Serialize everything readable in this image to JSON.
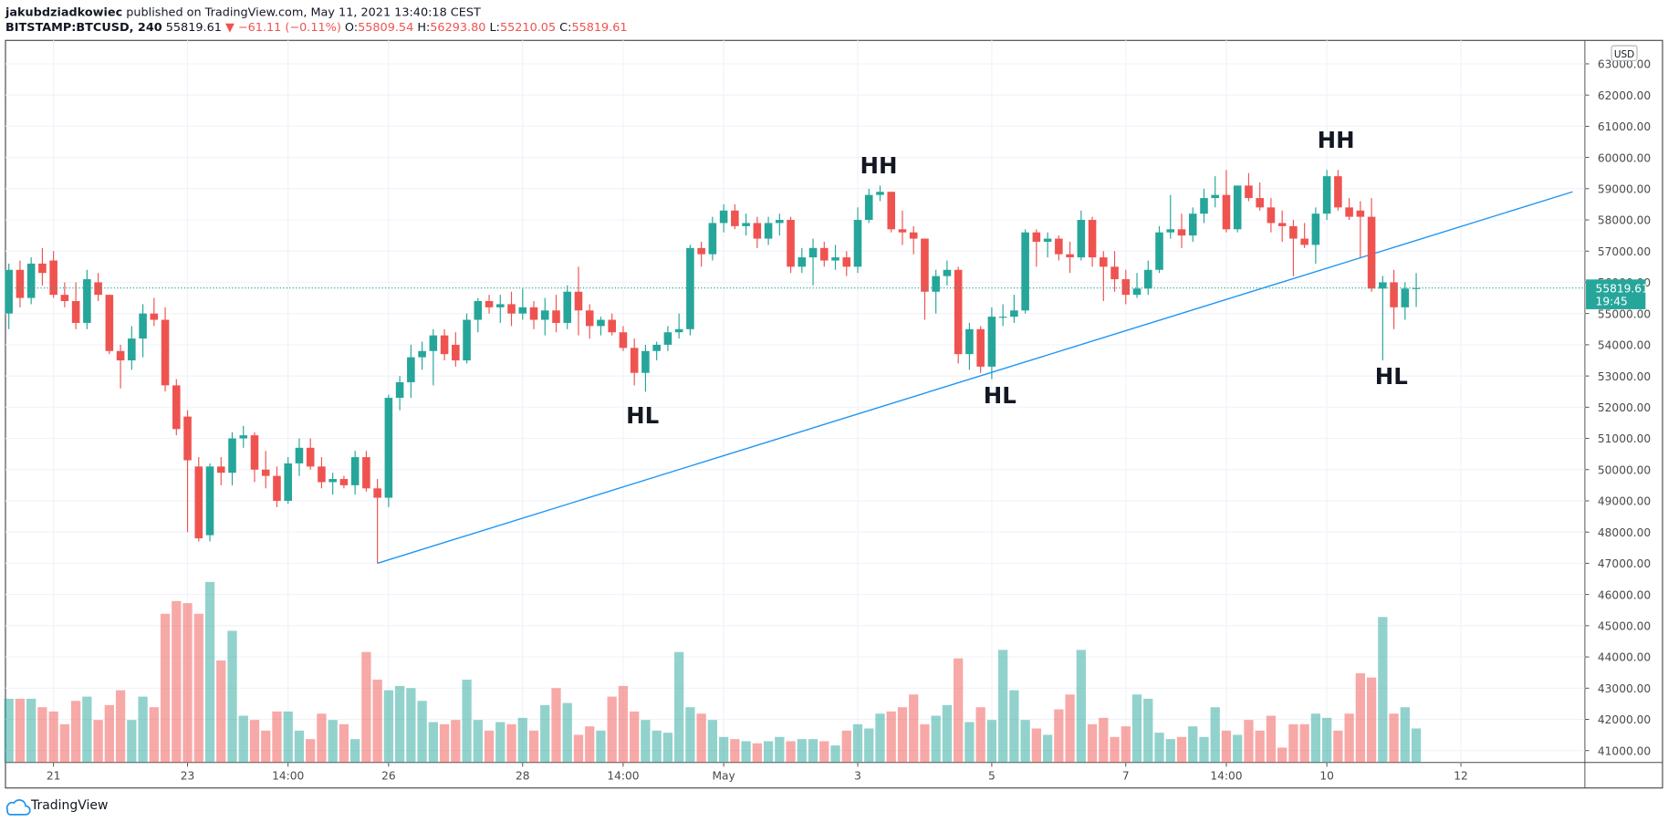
{
  "chart_data": {
    "type": "candlestick",
    "author": "jakubdziadkowiec",
    "published": "published on TradingView.com, May 11, 2021 13:40:18 CEST",
    "symbol": "BITSTAMP:BTCUSD, 240",
    "last": "55819.61",
    "change": "▼ −61.11 (−0.11%)",
    "ohlc_legend": [
      {
        "label": "O:",
        "value": "55809.54"
      },
      {
        "label": "H:",
        "value": "56293.80"
      },
      {
        "label": "L:",
        "value": "55210.05"
      },
      {
        "label": "C:",
        "value": "55819.61"
      }
    ],
    "currency": "USD",
    "last_price_label": "55819.61",
    "countdown": "19:45",
    "brand": "TradingView",
    "up_color": "#26a69a",
    "down_color": "#ef5350",
    "grid": true,
    "xlim": [
      -0.3,
      141.1
    ],
    "xticks": [
      {
        "value": 4,
        "label": "21"
      },
      {
        "value": 16,
        "label": "23"
      },
      {
        "value": 25,
        "label": "14:00"
      },
      {
        "value": 34,
        "label": "26"
      },
      {
        "value": 46,
        "label": "28"
      },
      {
        "value": 55,
        "label": "14:00"
      },
      {
        "value": 64,
        "label": "May"
      },
      {
        "value": 76,
        "label": "3"
      },
      {
        "value": 88,
        "label": "5"
      },
      {
        "value": 100,
        "label": "7"
      },
      {
        "value": 109,
        "label": "14:00"
      },
      {
        "value": 118,
        "label": "10"
      },
      {
        "value": 130,
        "label": "12"
      }
    ],
    "ylim": [
      40620,
      63750
    ],
    "yticks": [
      {
        "value": 41000,
        "label": "41000.00"
      },
      {
        "value": 42000,
        "label": "42000.00"
      },
      {
        "value": 43000,
        "label": "43000.00"
      },
      {
        "value": 44000,
        "label": "44000.00"
      },
      {
        "value": 45000,
        "label": "45000.00"
      },
      {
        "value": 46000,
        "label": "46000.00"
      },
      {
        "value": 47000,
        "label": "47000.00"
      },
      {
        "value": 48000,
        "label": "48000.00"
      },
      {
        "value": 49000,
        "label": "49000.00"
      },
      {
        "value": 50000,
        "label": "50000.00"
      },
      {
        "value": 51000,
        "label": "51000.00"
      },
      {
        "value": 52000,
        "label": "52000.00"
      },
      {
        "value": 53000,
        "label": "53000.00"
      },
      {
        "value": 54000,
        "label": "54000.00"
      },
      {
        "value": 55000,
        "label": "55000.00"
      },
      {
        "value": 56000,
        "label": "56000.00"
      },
      {
        "value": 57000,
        "label": "57000.00"
      },
      {
        "value": 58000,
        "label": "58000.00"
      },
      {
        "value": 59000,
        "label": "59000.00"
      },
      {
        "value": 60000,
        "label": "60000.00"
      },
      {
        "value": 61000,
        "label": "61000.00"
      },
      {
        "value": 62000,
        "label": "62000.00"
      },
      {
        "value": 63000,
        "label": "63000.00"
      }
    ],
    "open": [
      55000,
      56400,
      55500,
      56600,
      56700,
      55600,
      55400,
      54700,
      56000,
      55600,
      53800,
      53500,
      54200,
      55000,
      54800,
      52700,
      51700,
      50100,
      47900,
      50100,
      49900,
      51000,
      51100,
      50000,
      49800,
      49000,
      50200,
      50700,
      50100,
      49600,
      49700,
      49500,
      50400,
      49400,
      49100,
      52300,
      52800,
      53600,
      53800,
      54300,
      54000,
      53500,
      54800,
      55400,
      55200,
      55300,
      55000,
      55200,
      54800,
      55100,
      54700,
      55700,
      55100,
      54600,
      54800,
      54400,
      53900,
      53100,
      53800,
      54000,
      54400,
      54500,
      57100,
      56900,
      57900,
      58300,
      57800,
      57900,
      57400,
      57900,
      58000,
      56500,
      56800,
      57100,
      56700,
      56800,
      56500,
      58000,
      58800,
      58900,
      57700,
      57600,
      57400,
      55700,
      56200,
      56400,
      53700,
      54500,
      53300,
      54900,
      54900,
      55100,
      57600,
      57300,
      57400,
      56900,
      56800,
      58000,
      56800,
      56500,
      56100,
      55600,
      55800,
      56400,
      57600,
      57700,
      57500,
      58200,
      58700,
      58800,
      57700,
      59100,
      58700,
      58400,
      57900,
      57800,
      57400,
      57200,
      58200,
      59400,
      58400,
      58300,
      58100,
      55800,
      56000,
      55200,
      55809.54
    ],
    "high": [
      56600,
      56700,
      56800,
      57100,
      57000,
      56000,
      56000,
      56400,
      56300,
      55600,
      54000,
      54600,
      55300,
      55500,
      55200,
      52900,
      51900,
      50400,
      50200,
      50400,
      51200,
      51400,
      51200,
      50600,
      50100,
      50400,
      51000,
      51000,
      50400,
      49900,
      49800,
      50600,
      50600,
      49700,
      52400,
      53000,
      54000,
      54100,
      54500,
      54500,
      54400,
      55000,
      55500,
      55600,
      55600,
      55700,
      55800,
      55400,
      55500,
      55600,
      55900,
      56500,
      55300,
      54900,
      55000,
      54600,
      54200,
      54000,
      54100,
      54600,
      55000,
      57200,
      57300,
      58100,
      58500,
      58500,
      58200,
      58100,
      58100,
      58200,
      58100,
      57100,
      57400,
      57300,
      57200,
      57000,
      58400,
      59000,
      59100,
      58900,
      58300,
      57800,
      57400,
      56400,
      56700,
      56500,
      54700,
      54600,
      55200,
      55300,
      55600,
      57700,
      57700,
      57600,
      57500,
      57300,
      58300,
      58100,
      57000,
      57000,
      56400,
      56300,
      56700,
      57800,
      58800,
      58200,
      58400,
      59000,
      59400,
      59600,
      59100,
      59500,
      59200,
      58700,
      58300,
      58000,
      57900,
      58400,
      59600,
      59600,
      58700,
      58600,
      58700,
      56200,
      56400,
      56000,
      56293.8
    ],
    "low": [
      54500,
      55200,
      55300,
      55900,
      55500,
      55200,
      54500,
      54500,
      55400,
      53700,
      52600,
      53200,
      53600,
      54600,
      52500,
      51100,
      48000,
      47700,
      47700,
      49500,
      49500,
      50700,
      49600,
      49400,
      48800,
      48900,
      49800,
      50000,
      49400,
      49200,
      49400,
      49200,
      49300,
      47000,
      48800,
      51900,
      52300,
      53200,
      52700,
      53500,
      53300,
      53400,
      54400,
      55000,
      54700,
      54600,
      54800,
      54500,
      54300,
      54400,
      54500,
      54300,
      54200,
      54300,
      54300,
      53800,
      52700,
      52500,
      53500,
      53800,
      54200,
      54300,
      56500,
      56700,
      57600,
      57700,
      57500,
      57100,
      57200,
      57500,
      56300,
      56300,
      55900,
      56500,
      56400,
      56200,
      56300,
      57900,
      58600,
      57600,
      57200,
      56900,
      54800,
      55000,
      55900,
      53400,
      53200,
      53100,
      52900,
      54600,
      54700,
      55000,
      56500,
      56800,
      56700,
      56300,
      56700,
      56500,
      55400,
      55700,
      55300,
      55500,
      55600,
      56300,
      57400,
      57100,
      57300,
      57900,
      58400,
      57600,
      57600,
      58600,
      58300,
      57600,
      57300,
      56200,
      57100,
      56600,
      58000,
      58300,
      58000,
      56800,
      55700,
      53500,
      54500,
      54800,
      55210.05
    ],
    "close": [
      56400,
      55500,
      56600,
      56300,
      55600,
      55400,
      54700,
      56100,
      55600,
      53800,
      53500,
      54200,
      55000,
      54800,
      52700,
      51300,
      50300,
      47800,
      50100,
      49900,
      51000,
      51100,
      50000,
      49800,
      49000,
      50200,
      50700,
      50100,
      49600,
      49700,
      49500,
      50400,
      49400,
      49100,
      52300,
      52800,
      53600,
      53800,
      54300,
      53700,
      53500,
      54800,
      55400,
      55200,
      55300,
      55000,
      55200,
      54800,
      55100,
      54700,
      55700,
      55100,
      54600,
      54800,
      54400,
      53900,
      53100,
      53800,
      54000,
      54400,
      54500,
      57100,
      56900,
      57900,
      58300,
      57800,
      57900,
      57400,
      57900,
      58000,
      56500,
      56800,
      57100,
      56700,
      56800,
      56500,
      58000,
      58800,
      58900,
      57700,
      57600,
      57400,
      55700,
      56200,
      56400,
      53700,
      54500,
      53300,
      54900,
      54900,
      55100,
      57600,
      57300,
      57400,
      56900,
      56800,
      58000,
      56800,
      56500,
      56100,
      55600,
      55800,
      56400,
      57600,
      57700,
      57500,
      58200,
      58700,
      58800,
      57700,
      59100,
      58700,
      58400,
      57900,
      57800,
      57400,
      57200,
      58200,
      59400,
      58400,
      58100,
      58100,
      55800,
      56000,
      55200,
      55800,
      55819.61
    ],
    "volume": [
      60,
      60,
      60,
      52,
      48,
      36,
      58,
      62,
      40,
      54,
      68,
      40,
      62,
      52,
      140,
      152,
      150,
      140,
      170,
      96,
      124,
      44,
      40,
      30,
      48,
      48,
      30,
      22,
      46,
      40,
      36,
      22,
      104,
      78,
      68,
      72,
      70,
      58,
      38,
      36,
      40,
      78,
      40,
      30,
      38,
      36,
      42,
      30,
      54,
      70,
      56,
      26,
      34,
      30,
      62,
      72,
      48,
      40,
      30,
      28,
      104,
      52,
      46,
      40,
      24,
      22,
      20,
      18,
      20,
      24,
      20,
      22,
      22,
      20,
      16,
      30,
      36,
      32,
      46,
      48,
      52,
      64,
      36,
      44,
      54,
      98,
      38,
      52,
      40,
      106,
      68,
      40,
      32,
      26,
      50,
      64,
      106,
      36,
      42,
      24,
      34,
      64,
      60,
      28,
      22,
      24,
      34,
      24,
      52,
      30,
      26,
      40,
      30,
      44,
      14,
      36,
      36,
      46,
      42,
      30,
      46,
      84,
      80,
      137,
      46,
      52,
      32
    ],
    "volume_ylim": [
      0,
      680
    ],
    "trendline": {
      "x": [
        33,
        140
      ],
      "y": [
        47000,
        58900
      ],
      "color": "#2196f3"
    },
    "annotations": [
      "HH",
      "HL",
      "HL",
      "HH",
      "HL"
    ]
  }
}
